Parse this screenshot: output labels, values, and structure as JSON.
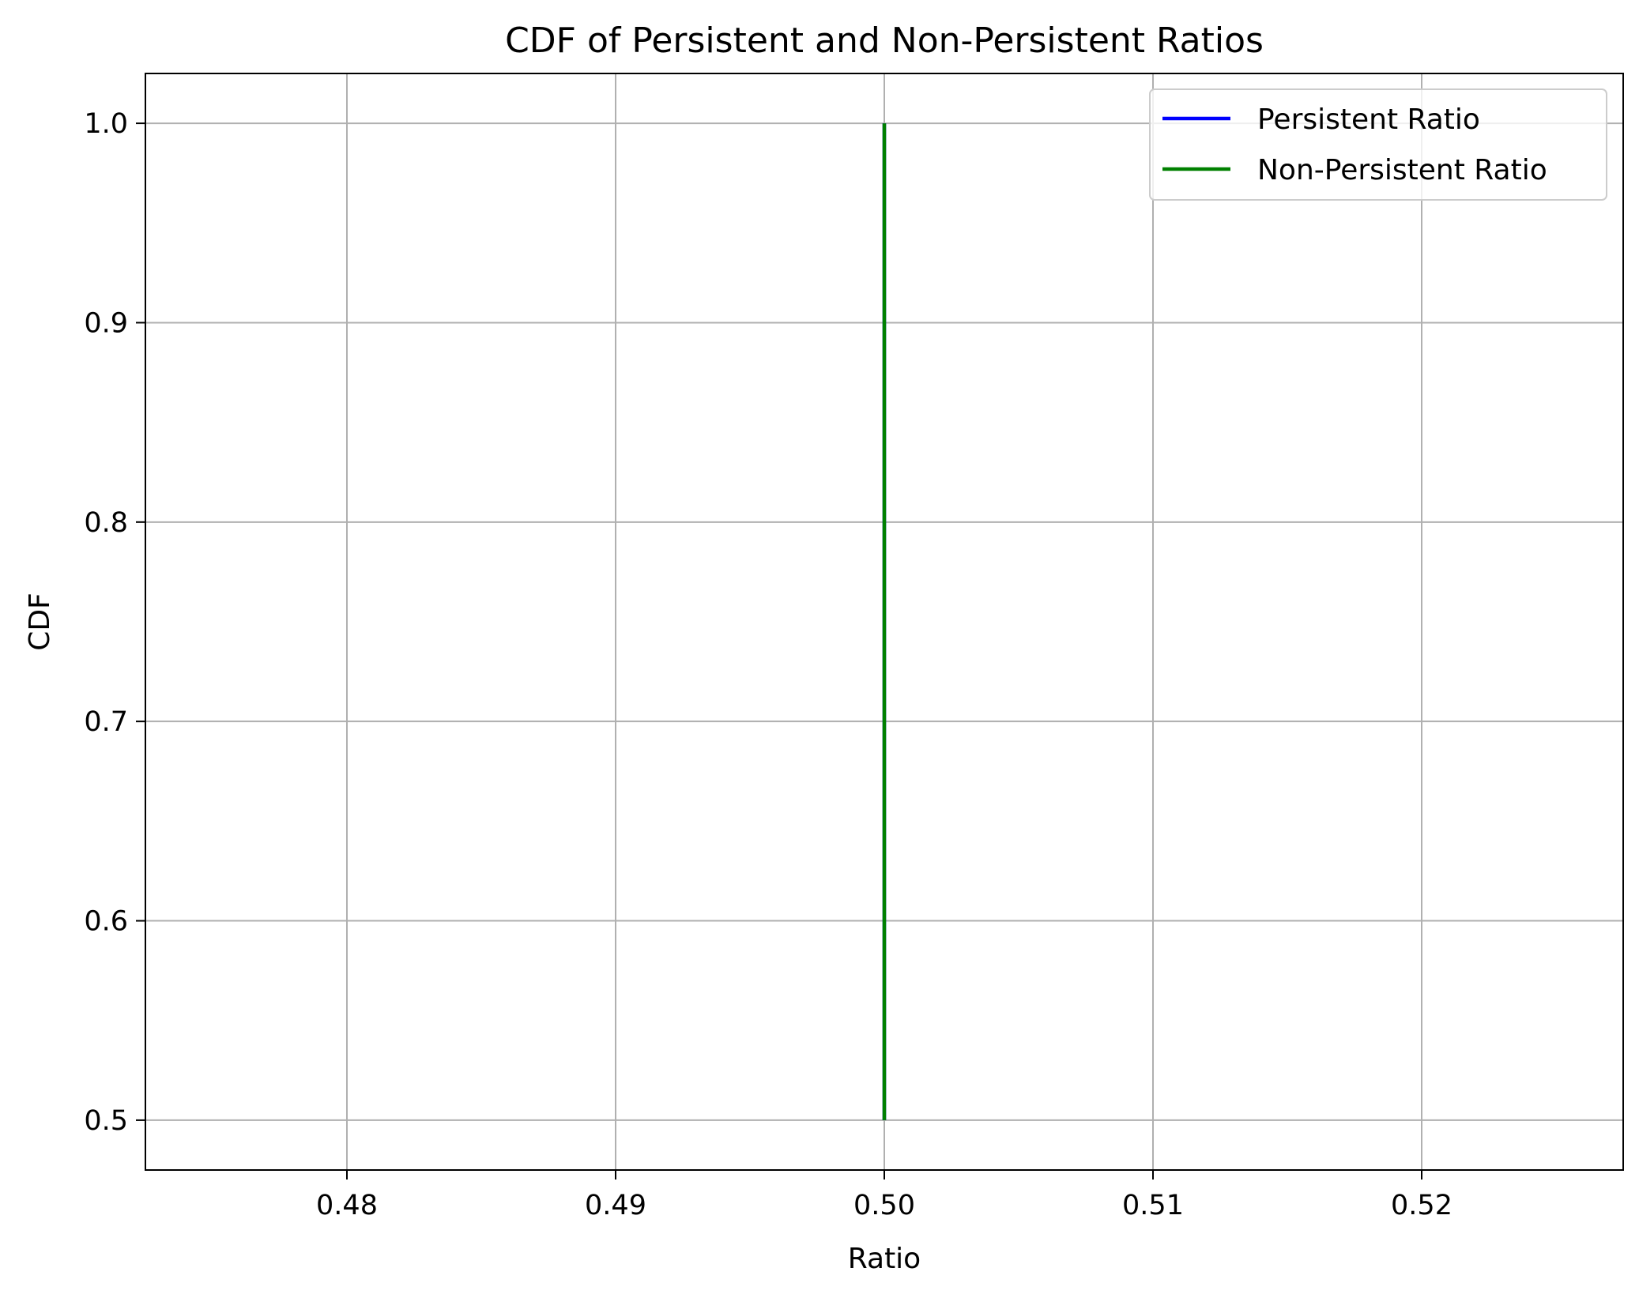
{
  "chart_data": {
    "type": "line",
    "title": "CDF of Persistent and Non-Persistent Ratios",
    "xlabel": "Ratio",
    "ylabel": "CDF",
    "xlim": [
      0.4725,
      0.5275
    ],
    "ylim": [
      0.475,
      1.025
    ],
    "xticks": [
      0.48,
      0.49,
      0.5,
      0.51,
      0.52
    ],
    "xtick_labels": [
      "0.48",
      "0.49",
      "0.50",
      "0.51",
      "0.52"
    ],
    "yticks": [
      0.5,
      0.6,
      0.7,
      0.8,
      0.9,
      1.0
    ],
    "ytick_labels": [
      "0.5",
      "0.6",
      "0.7",
      "0.8",
      "0.9",
      "1.0"
    ],
    "grid": true,
    "legend_position": "top-right",
    "series": [
      {
        "name": "Persistent Ratio",
        "color": "#0000ff",
        "x": [
          0.5,
          0.5
        ],
        "y": [
          0.5,
          1.0
        ]
      },
      {
        "name": "Non-Persistent Ratio",
        "color": "#008000",
        "x": [
          0.5,
          0.5
        ],
        "y": [
          0.5,
          1.0
        ]
      }
    ]
  }
}
